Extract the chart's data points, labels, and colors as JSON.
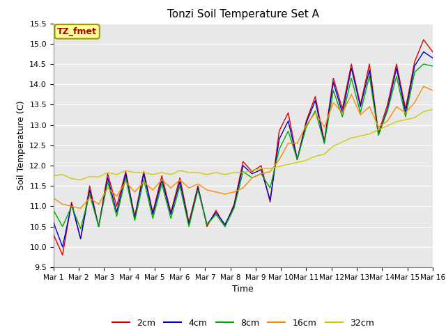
{
  "title": "Tonzi Soil Temperature Set A",
  "xlabel": "Time",
  "ylabel": "Soil Temperature (C)",
  "ylim": [
    9.5,
    15.5
  ],
  "xlim": [
    0,
    15
  ],
  "xtick_labels": [
    "Mar 1",
    "Mar 2",
    "Mar 3",
    "Mar 4",
    "Mar 5",
    "Mar 6",
    "Mar 7",
    "Mar 8",
    "Mar 9",
    "Mar 10",
    "Mar 11",
    "Mar 12",
    "Mar 13",
    "Mar 14",
    "Mar 15",
    "Mar 16"
  ],
  "ytick_values": [
    9.5,
    10.0,
    10.5,
    11.0,
    11.5,
    12.0,
    12.5,
    13.0,
    13.5,
    14.0,
    14.5,
    15.0,
    15.5
  ],
  "background_color": "#e8e8e8",
  "plot_bg_color": "#e8e8e8",
  "fig_bg_color": "#ffffff",
  "legend_label": "TZ_fmet",
  "legend_box_facecolor": "#ffff99",
  "legend_box_edgecolor": "#999900",
  "series_colors": {
    "2cm": "#dd0000",
    "4cm": "#0000cc",
    "8cm": "#00aa00",
    "16cm": "#ff8800",
    "32cm": "#cccc00"
  },
  "series_2cm": [
    10.3,
    9.8,
    11.1,
    10.2,
    11.5,
    10.5,
    11.8,
    11.0,
    11.85,
    10.75,
    11.85,
    10.85,
    11.75,
    10.85,
    11.7,
    10.6,
    11.5,
    10.5,
    10.9,
    10.5,
    11.05,
    12.1,
    11.85,
    12.0,
    11.1,
    12.85,
    13.3,
    12.15,
    13.1,
    13.7,
    12.6,
    14.15,
    13.4,
    14.5,
    13.5,
    14.5,
    12.8,
    13.5,
    14.5,
    13.4,
    14.55,
    15.1,
    14.8
  ],
  "series_4cm": [
    10.6,
    10.0,
    11.05,
    10.2,
    11.4,
    10.5,
    11.7,
    10.85,
    11.8,
    10.7,
    11.8,
    10.8,
    11.65,
    10.8,
    11.6,
    10.55,
    11.45,
    10.55,
    10.85,
    10.55,
    11.0,
    12.0,
    11.8,
    11.9,
    11.15,
    12.65,
    13.1,
    12.15,
    13.05,
    13.6,
    12.55,
    14.05,
    13.3,
    14.4,
    13.45,
    14.35,
    12.75,
    13.4,
    14.4,
    13.3,
    14.45,
    14.8,
    14.65
  ],
  "series_8cm": [
    10.9,
    10.5,
    11.0,
    10.45,
    11.3,
    10.5,
    11.6,
    10.75,
    11.7,
    10.65,
    11.65,
    10.7,
    11.55,
    10.7,
    11.5,
    10.5,
    11.4,
    10.55,
    10.8,
    10.5,
    10.95,
    11.85,
    11.7,
    11.8,
    11.45,
    12.4,
    12.85,
    12.15,
    12.95,
    13.35,
    12.55,
    13.85,
    13.2,
    14.15,
    13.3,
    14.2,
    12.75,
    13.35,
    14.2,
    13.2,
    14.3,
    14.5,
    14.45
  ],
  "series_16cm": [
    11.2,
    11.05,
    11.0,
    10.95,
    11.2,
    11.05,
    11.45,
    11.25,
    11.6,
    11.35,
    11.6,
    11.4,
    11.65,
    11.45,
    11.65,
    11.45,
    11.55,
    11.4,
    11.35,
    11.3,
    11.35,
    11.45,
    11.7,
    11.8,
    11.85,
    12.15,
    12.55,
    12.55,
    13.0,
    13.3,
    12.95,
    13.55,
    13.3,
    13.75,
    13.25,
    13.45,
    12.95,
    13.1,
    13.45,
    13.3,
    13.55,
    13.95,
    13.85
  ],
  "series_32cm": [
    11.75,
    11.78,
    11.68,
    11.65,
    11.73,
    11.72,
    11.83,
    11.78,
    11.88,
    11.83,
    11.83,
    11.78,
    11.83,
    11.78,
    11.88,
    11.83,
    11.83,
    11.78,
    11.83,
    11.78,
    11.83,
    11.83,
    11.88,
    11.93,
    11.93,
    11.98,
    12.03,
    12.08,
    12.13,
    12.23,
    12.28,
    12.48,
    12.58,
    12.68,
    12.73,
    12.78,
    12.88,
    12.98,
    13.08,
    13.13,
    13.18,
    13.33,
    13.38
  ]
}
